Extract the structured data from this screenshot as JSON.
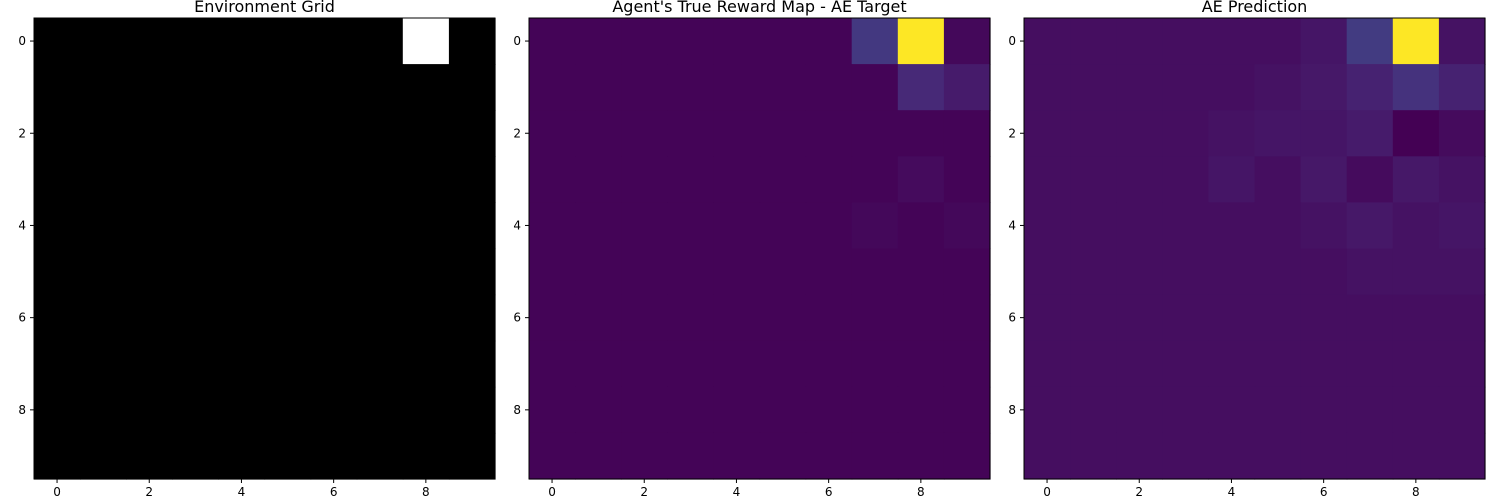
{
  "chart_data": [
    {
      "type": "heatmap",
      "title": "Environment Grid",
      "colormap": "gray",
      "vmin": 0,
      "vmax": 1,
      "x_ticks": [
        0,
        2,
        4,
        6,
        8
      ],
      "y_ticks": [
        0,
        2,
        4,
        6,
        8
      ],
      "values": [
        [
          0,
          0,
          0,
          0,
          0,
          0,
          0,
          0,
          1,
          0
        ],
        [
          0,
          0,
          0,
          0,
          0,
          0,
          0,
          0,
          0,
          0
        ],
        [
          0,
          0,
          0,
          0,
          0,
          0,
          0,
          0,
          0,
          0
        ],
        [
          0,
          0,
          0,
          0,
          0,
          0,
          0,
          0,
          0,
          0
        ],
        [
          0,
          0,
          0,
          0,
          0,
          0,
          0,
          0,
          0,
          0
        ],
        [
          0,
          0,
          0,
          0,
          0,
          0,
          0,
          0,
          0,
          0
        ],
        [
          0,
          0,
          0,
          0,
          0,
          0,
          0,
          0,
          0,
          0
        ],
        [
          0,
          0,
          0,
          0,
          0,
          0,
          0,
          0,
          0,
          0
        ],
        [
          0,
          0,
          0,
          0,
          0,
          0,
          0,
          0,
          0,
          0
        ],
        [
          0,
          0,
          0,
          0,
          0,
          0,
          0,
          0,
          0,
          0
        ]
      ]
    },
    {
      "type": "heatmap",
      "title": "Agent's True Reward Map - AE Target",
      "colormap": "viridis",
      "vmin": 0,
      "vmax": 1,
      "x_ticks": [
        0,
        2,
        4,
        6,
        8
      ],
      "y_ticks": [
        0,
        2,
        4,
        6,
        8
      ],
      "values": [
        [
          0.01,
          0.01,
          0.01,
          0.01,
          0.01,
          0.01,
          0.01,
          0.17,
          1.0,
          0.02
        ],
        [
          0.01,
          0.01,
          0.01,
          0.01,
          0.01,
          0.01,
          0.01,
          0.01,
          0.12,
          0.08
        ],
        [
          0.01,
          0.01,
          0.01,
          0.01,
          0.01,
          0.01,
          0.01,
          0.01,
          0.01,
          0.01
        ],
        [
          0.01,
          0.01,
          0.01,
          0.01,
          0.01,
          0.01,
          0.01,
          0.01,
          0.03,
          0.01
        ],
        [
          0.01,
          0.01,
          0.01,
          0.01,
          0.01,
          0.01,
          0.01,
          0.02,
          0.01,
          0.02
        ],
        [
          0.01,
          0.01,
          0.01,
          0.01,
          0.01,
          0.01,
          0.01,
          0.01,
          0.01,
          0.01
        ],
        [
          0.01,
          0.01,
          0.01,
          0.01,
          0.01,
          0.01,
          0.01,
          0.01,
          0.01,
          0.01
        ],
        [
          0.01,
          0.01,
          0.01,
          0.01,
          0.01,
          0.01,
          0.01,
          0.01,
          0.01,
          0.01
        ],
        [
          0.01,
          0.01,
          0.01,
          0.01,
          0.01,
          0.01,
          0.01,
          0.01,
          0.01,
          0.01
        ],
        [
          0.01,
          0.01,
          0.01,
          0.01,
          0.01,
          0.01,
          0.01,
          0.01,
          0.01,
          0.01
        ]
      ]
    },
    {
      "type": "heatmap",
      "title": "AE Prediction",
      "colormap": "viridis",
      "vmin": 0,
      "vmax": 1,
      "x_ticks": [
        0,
        2,
        4,
        6,
        8
      ],
      "y_ticks": [
        0,
        2,
        4,
        6,
        8
      ],
      "values": [
        [
          0.04,
          0.04,
          0.04,
          0.04,
          0.04,
          0.04,
          0.06,
          0.18,
          1.0,
          0.05
        ],
        [
          0.04,
          0.04,
          0.04,
          0.04,
          0.04,
          0.05,
          0.07,
          0.1,
          0.15,
          0.1
        ],
        [
          0.04,
          0.04,
          0.04,
          0.04,
          0.05,
          0.06,
          0.06,
          0.08,
          0.0,
          0.03
        ],
        [
          0.04,
          0.04,
          0.04,
          0.04,
          0.06,
          0.04,
          0.07,
          0.03,
          0.07,
          0.05
        ],
        [
          0.04,
          0.04,
          0.04,
          0.04,
          0.04,
          0.04,
          0.05,
          0.07,
          0.05,
          0.06
        ],
        [
          0.04,
          0.04,
          0.04,
          0.04,
          0.04,
          0.04,
          0.04,
          0.05,
          0.05,
          0.05
        ],
        [
          0.04,
          0.04,
          0.04,
          0.04,
          0.04,
          0.04,
          0.04,
          0.04,
          0.04,
          0.04
        ],
        [
          0.04,
          0.04,
          0.04,
          0.04,
          0.04,
          0.04,
          0.04,
          0.04,
          0.04,
          0.04
        ],
        [
          0.04,
          0.04,
          0.04,
          0.04,
          0.04,
          0.04,
          0.04,
          0.04,
          0.04,
          0.04
        ],
        [
          0.04,
          0.04,
          0.04,
          0.04,
          0.04,
          0.04,
          0.04,
          0.04,
          0.04,
          0.04
        ]
      ]
    }
  ]
}
